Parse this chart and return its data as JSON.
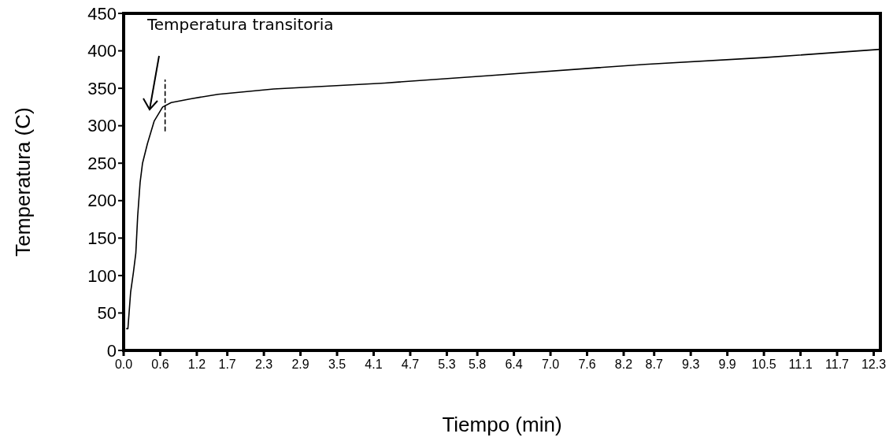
{
  "chart_data": {
    "type": "line",
    "xlabel": "Tiempo (min)",
    "ylabel": "Temperatura (C)",
    "xlim": [
      0,
      12.41
    ],
    "ylim": [
      0,
      450
    ],
    "xticks": [
      {
        "value": 0,
        "label": "0.0"
      },
      0.6,
      1.2,
      1.7,
      2.3,
      2.9,
      3.5,
      4.1,
      4.7,
      5.3,
      5.8,
      6.4,
      {
        "value": 7,
        "label": "7.0"
      },
      7.6,
      8.2,
      8.7,
      9.3,
      9.9,
      10.5,
      11.1,
      11.7,
      12.3
    ],
    "yticks": [
      0,
      50,
      100,
      150,
      200,
      250,
      300,
      350,
      400,
      450
    ],
    "grid": false,
    "annotations": [
      "Temperatura transitoria"
    ],
    "series": [
      {
        "color": "#000000",
        "line_style": "solid",
        "x": [
          0.05,
          0.07,
          0.115,
          0.16,
          0.2,
          0.23,
          0.27,
          0.31,
          0.39,
          0.5,
          0.64,
          0.78,
          1.1,
          1.55,
          2.46,
          4.28,
          6.0,
          8.55,
          10.5,
          12.41
        ],
        "values": [
          29,
          29,
          78,
          104,
          130,
          179,
          224,
          250,
          276,
          306,
          325,
          331,
          336,
          342,
          349,
          357,
          367,
          382,
          391,
          402
        ]
      },
      {
        "color": "#000000",
        "line_style": "dashed",
        "x": [
          0.68,
          0.68
        ],
        "values": [
          293,
          361
        ]
      }
    ]
  }
}
